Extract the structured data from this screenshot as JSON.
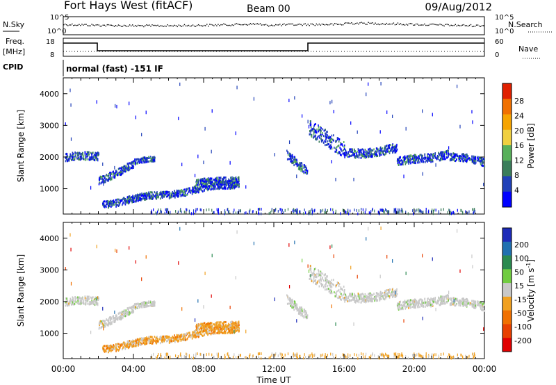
{
  "header": {
    "station": "Fort Hays West (fitACF)",
    "beam": "Beam 00",
    "date": "09/Aug/2012"
  },
  "status_labels": {
    "nsky": "N.Sky",
    "nsearch": "N.Search",
    "freq": "Freq.",
    "freq_unit": "[MHz]",
    "nave": "Nave",
    "cpid": "CPID",
    "cpid_value": "normal (fast) -151 IF"
  },
  "status_ticks": {
    "noise_left": [
      "10^5",
      "10^0"
    ],
    "noise_right": [
      "10^5",
      "10^0"
    ],
    "freq_left": [
      "18",
      "8"
    ],
    "nave_right": [
      "60",
      "0"
    ]
  },
  "colors": {
    "power_scale": [
      "#0000ff",
      "#2040b8",
      "#3a7d5a",
      "#58b05a",
      "#f0d040",
      "#f6a400",
      "#f07000",
      "#e02000"
    ],
    "velocity_scale": [
      "#1d2bb8",
      "#2070b0",
      "#2a8a50",
      "#70cc40",
      "#c8c8c8",
      "#f0a020",
      "#f07000",
      "#e84000",
      "#e00000"
    ]
  },
  "chart_data": [
    {
      "type": "heatmap",
      "name_panel": "power",
      "ylabel": "Slant Range [km]",
      "yticks": [
        1000,
        2000,
        3000,
        4000
      ],
      "ylim": [
        200,
        4500
      ],
      "xlim": [
        0,
        24
      ],
      "colorbar_label": "Power [dB]",
      "colorbar_ticks": [
        "28",
        "24",
        "20",
        "16",
        "12",
        "8",
        "4"
      ],
      "colorbar_range": [
        0,
        30
      ]
    },
    {
      "type": "heatmap",
      "name_panel": "velocity",
      "ylabel": "Slant Range [km]",
      "yticks": [
        1000,
        2000,
        3000,
        4000
      ],
      "ylim": [
        200,
        4500
      ],
      "xlim": [
        0,
        24
      ],
      "colorbar_label": "Velocity [m s^-1]",
      "colorbar_ticks": [
        "200",
        "100",
        "50",
        "15",
        "-15",
        "-50",
        "-100",
        "-200"
      ]
    }
  ],
  "x_axis": {
    "tick_labels": [
      "00:00",
      "04:00",
      "08:00",
      "12:00",
      "16:00",
      "20:00",
      "00:00"
    ],
    "label": "Time UT"
  }
}
